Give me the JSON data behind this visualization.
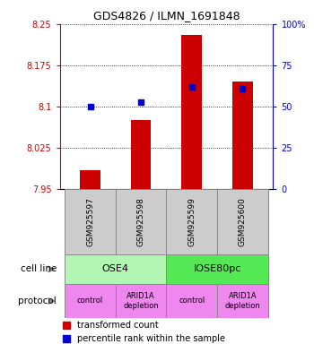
{
  "title": "GDS4826 / ILMN_1691848",
  "samples": [
    "GSM925597",
    "GSM925598",
    "GSM925599",
    "GSM925600"
  ],
  "red_bar_values": [
    7.985,
    8.075,
    8.23,
    8.145
  ],
  "blue_dot_values": [
    50.0,
    53.0,
    62.0,
    61.0
  ],
  "ylim_left": [
    7.95,
    8.25
  ],
  "ylim_right": [
    0,
    100
  ],
  "yticks_left": [
    7.95,
    8.025,
    8.1,
    8.175,
    8.25
  ],
  "yticks_right": [
    0,
    25,
    50,
    75,
    100
  ],
  "ytick_labels_left": [
    "7.95",
    "8.025",
    "8.1",
    "8.175",
    "8.25"
  ],
  "ytick_labels_right": [
    "0",
    "25",
    "50",
    "75",
    "100%"
  ],
  "cell_line_labels": [
    [
      "OSE4",
      2
    ],
    [
      "IOSE80pc",
      2
    ]
  ],
  "protocol_labels": [
    "control",
    "ARID1A\ndepletion",
    "control",
    "ARID1A\ndepletion"
  ],
  "cell_line_colors": [
    "#b3f5b3",
    "#55e855"
  ],
  "protocol_color": "#ee88ee",
  "sample_box_color": "#cccccc",
  "bar_color": "#cc0000",
  "dot_color": "#0000cc",
  "axis_left_color": "#cc0000",
  "axis_right_color": "#0000cc",
  "legend_red_label": "transformed count",
  "legend_blue_label": "percentile rank within the sample",
  "cell_line_row_label": "cell line",
  "protocol_row_label": "protocol"
}
